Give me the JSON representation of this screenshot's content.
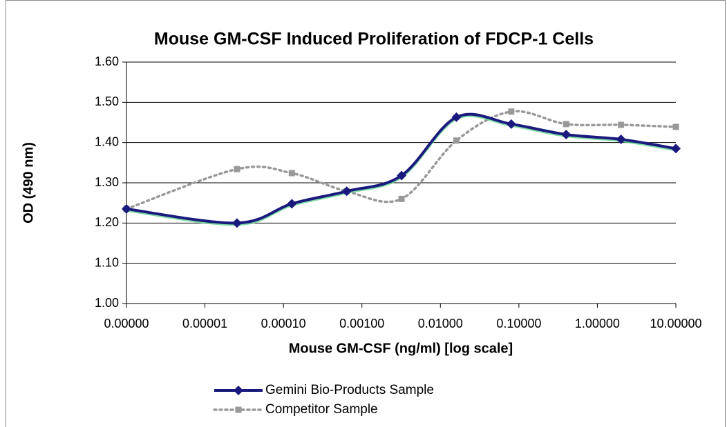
{
  "chart_data": {
    "type": "line",
    "title": "Mouse GM-CSF Induced Proliferation of FDCP-1 Cells",
    "xlabel": "Mouse GM-CSF (ng/ml) [log scale]",
    "ylabel": "OD (490 nm)",
    "xscale": "log",
    "smooth": true,
    "grid": true,
    "legend": "bottom",
    "x": [
      1e-06,
      2.56e-05,
      0.000128,
      0.00064,
      0.0032,
      0.016,
      0.08,
      0.4,
      2,
      10
    ],
    "series": [
      {
        "name": "Gemini Bio-Products Sample",
        "color": "#1a1a7e",
        "marker": "diamond",
        "values": [
          1.235,
          1.2,
          1.248,
          1.279,
          1.318,
          1.463,
          1.446,
          1.42,
          1.408,
          1.385
        ]
      },
      {
        "name": "Competitor Sample",
        "color": "#999999",
        "marker": "square",
        "values": [
          1.235,
          1.334,
          1.324,
          1.279,
          1.26,
          1.405,
          1.477,
          1.446,
          1.444,
          1.439
        ]
      }
    ],
    "xlim": [
      1e-06,
      10
    ],
    "xticks": [
      {
        "value": 1e-06,
        "label": "0.00000"
      },
      {
        "value": 1e-05,
        "label": "0.00001"
      },
      {
        "value": 0.0001,
        "label": "0.00010"
      },
      {
        "value": 0.001,
        "label": "0.00100"
      },
      {
        "value": 0.01,
        "label": "0.01000"
      },
      {
        "value": 0.1,
        "label": "0.10000"
      },
      {
        "value": 1,
        "label": "1.00000"
      },
      {
        "value": 10,
        "label": "10.00000"
      }
    ],
    "ylim": [
      1.0,
      1.6
    ],
    "yticks": [
      {
        "value": 1.0,
        "label": "1.00"
      },
      {
        "value": 1.1,
        "label": "1.10"
      },
      {
        "value": 1.2,
        "label": "1.20"
      },
      {
        "value": 1.3,
        "label": "1.30"
      },
      {
        "value": 1.4,
        "label": "1.40"
      },
      {
        "value": 1.5,
        "label": "1.50"
      },
      {
        "value": 1.6,
        "label": "1.60"
      }
    ]
  }
}
